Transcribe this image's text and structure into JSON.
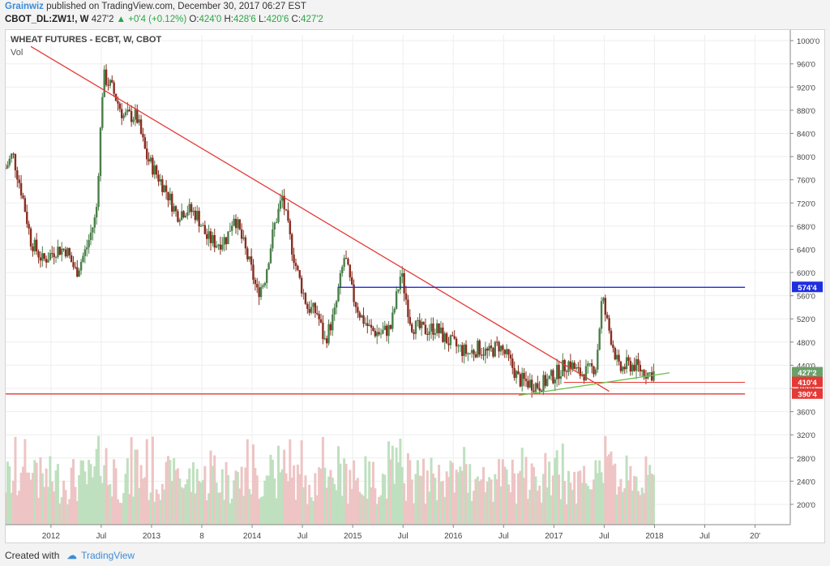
{
  "header": {
    "author": "Grainwiz",
    "published": "published on TradingView.com, December 30, 2017 06:27 EST",
    "symbol": "CBOT_DL:ZW1!, W",
    "price": "427'2",
    "change_arrow": "▲",
    "change": "+0'4 (+0.12%)",
    "o_label": "O:",
    "o_value": "424'0",
    "h_label": "H:",
    "h_value": "428'6",
    "l_label": "L:",
    "l_value": "420'6",
    "c_label": "C:",
    "c_value": "427'2"
  },
  "legend": {
    "title": "WHEAT FUTURES - ECBT, W, CBOT",
    "volume": "Vol"
  },
  "footer": {
    "created_with": "Created with",
    "brand": "TradingView"
  },
  "colors": {
    "up": "#4a7f4a",
    "down": "#8a2d20",
    "trend_red": "#e53935",
    "horizontal_blue": "#1f2ee0",
    "trend_green": "#6cc04a",
    "vol_up": "#bfe0bf",
    "vol_down": "#eec4c4"
  },
  "chart_data": {
    "type": "candlestick",
    "y_ticks": [
      "1000'0",
      "960'0",
      "920'0",
      "880'0",
      "840'0",
      "800'0",
      "760'0",
      "720'0",
      "680'0",
      "640'0",
      "600'0",
      "560'0",
      "520'0",
      "480'0",
      "440'0",
      "400'0",
      "360'0",
      "320'0",
      "280'0",
      "240'0",
      "200'0"
    ],
    "y_tick_values": [
      1000,
      960,
      920,
      880,
      840,
      800,
      760,
      720,
      680,
      640,
      600,
      560,
      520,
      480,
      440,
      400,
      360,
      320,
      280,
      240,
      200
    ],
    "x_ticks": [
      {
        "label": "2012",
        "t": 2012.0
      },
      {
        "label": "Jul",
        "t": 2012.5
      },
      {
        "label": "2013",
        "t": 2013.0
      },
      {
        "label": "8",
        "t": 2013.5
      },
      {
        "label": "2014",
        "t": 2014.0
      },
      {
        "label": "Jul",
        "t": 2014.5
      },
      {
        "label": "2015",
        "t": 2015.0
      },
      {
        "label": "Jul",
        "t": 2015.5
      },
      {
        "label": "2016",
        "t": 2016.0
      },
      {
        "label": "Jul",
        "t": 2016.5
      },
      {
        "label": "2017",
        "t": 2017.0
      },
      {
        "label": "Jul",
        "t": 2017.5
      },
      {
        "label": "2018",
        "t": 2018.0
      },
      {
        "label": "Jul",
        "t": 2018.5
      },
      {
        "label": "20'",
        "t": 2019.0
      }
    ],
    "price_path": [
      {
        "t": 2011.55,
        "p": 780
      },
      {
        "t": 2011.62,
        "p": 805
      },
      {
        "t": 2011.72,
        "p": 730
      },
      {
        "t": 2011.8,
        "p": 655
      },
      {
        "t": 2011.92,
        "p": 620
      },
      {
        "t": 2012.05,
        "p": 640
      },
      {
        "t": 2012.15,
        "p": 640
      },
      {
        "t": 2012.25,
        "p": 600
      },
      {
        "t": 2012.35,
        "p": 640
      },
      {
        "t": 2012.45,
        "p": 700
      },
      {
        "t": 2012.52,
        "p": 940
      },
      {
        "t": 2012.6,
        "p": 920
      },
      {
        "t": 2012.72,
        "p": 870
      },
      {
        "t": 2012.85,
        "p": 870
      },
      {
        "t": 2012.95,
        "p": 800
      },
      {
        "t": 2013.05,
        "p": 770
      },
      {
        "t": 2013.15,
        "p": 740
      },
      {
        "t": 2013.25,
        "p": 700
      },
      {
        "t": 2013.35,
        "p": 710
      },
      {
        "t": 2013.45,
        "p": 700
      },
      {
        "t": 2013.55,
        "p": 660
      },
      {
        "t": 2013.65,
        "p": 650
      },
      {
        "t": 2013.75,
        "p": 660
      },
      {
        "t": 2013.82,
        "p": 700
      },
      {
        "t": 2013.92,
        "p": 645
      },
      {
        "t": 2014.0,
        "p": 600
      },
      {
        "t": 2014.05,
        "p": 565
      },
      {
        "t": 2014.12,
        "p": 585
      },
      {
        "t": 2014.22,
        "p": 680
      },
      {
        "t": 2014.3,
        "p": 730
      },
      {
        "t": 2014.38,
        "p": 655
      },
      {
        "t": 2014.45,
        "p": 600
      },
      {
        "t": 2014.55,
        "p": 540
      },
      {
        "t": 2014.65,
        "p": 530
      },
      {
        "t": 2014.72,
        "p": 480
      },
      {
        "t": 2014.82,
        "p": 530
      },
      {
        "t": 2014.92,
        "p": 630
      },
      {
        "t": 2015.0,
        "p": 560
      },
      {
        "t": 2015.08,
        "p": 525
      },
      {
        "t": 2015.18,
        "p": 500
      },
      {
        "t": 2015.28,
        "p": 495
      },
      {
        "t": 2015.38,
        "p": 505
      },
      {
        "t": 2015.48,
        "p": 600
      },
      {
        "t": 2015.58,
        "p": 510
      },
      {
        "t": 2015.7,
        "p": 500
      },
      {
        "t": 2015.82,
        "p": 505
      },
      {
        "t": 2015.92,
        "p": 485
      },
      {
        "t": 2016.05,
        "p": 470
      },
      {
        "t": 2016.15,
        "p": 460
      },
      {
        "t": 2016.25,
        "p": 470
      },
      {
        "t": 2016.35,
        "p": 460
      },
      {
        "t": 2016.45,
        "p": 475
      },
      {
        "t": 2016.55,
        "p": 450
      },
      {
        "t": 2016.65,
        "p": 415
      },
      {
        "t": 2016.75,
        "p": 410
      },
      {
        "t": 2016.85,
        "p": 405
      },
      {
        "t": 2016.95,
        "p": 415
      },
      {
        "t": 2017.05,
        "p": 430
      },
      {
        "t": 2017.15,
        "p": 445
      },
      {
        "t": 2017.25,
        "p": 425
      },
      {
        "t": 2017.35,
        "p": 430
      },
      {
        "t": 2017.42,
        "p": 440
      },
      {
        "t": 2017.48,
        "p": 560
      },
      {
        "t": 2017.52,
        "p": 520
      },
      {
        "t": 2017.58,
        "p": 480
      },
      {
        "t": 2017.65,
        "p": 430
      },
      {
        "t": 2017.72,
        "p": 440
      },
      {
        "t": 2017.8,
        "p": 440
      },
      {
        "t": 2017.88,
        "p": 430
      },
      {
        "t": 2017.95,
        "p": 425
      },
      {
        "t": 2018.0,
        "p": 427
      }
    ],
    "price_labels": [
      {
        "label": "574'4",
        "value": 574.5,
        "color": "#1f2ee0"
      },
      {
        "label": "427'2",
        "value": 427.25,
        "color": "#6a9f6a"
      },
      {
        "label": "410'4",
        "value": 410.5,
        "color": "#e53935"
      },
      {
        "label": "390'4",
        "value": 390.5,
        "color": "#e53935"
      }
    ],
    "lines": [
      {
        "name": "downtrend",
        "x1": 2011.8,
        "y1": 990,
        "x2": 2017.55,
        "y2": 395
      },
      {
        "name": "resistance",
        "x1": 2014.85,
        "y1": 574.5,
        "x2": 2018.9,
        "y2": 574.5
      },
      {
        "name": "support-410",
        "x1": 2017.1,
        "y1": 410.5,
        "x2": 2018.9,
        "y2": 410.5
      },
      {
        "name": "support-390",
        "x1": 2011.5,
        "y1": 390.5,
        "x2": 2018.9,
        "y2": 390.5
      },
      {
        "name": "uptrend",
        "x1": 2016.65,
        "y1": 388,
        "x2": 2018.15,
        "y2": 427
      }
    ],
    "x_range": [
      2011.55,
      2019.35
    ],
    "y_range": [
      165,
      1010
    ]
  }
}
